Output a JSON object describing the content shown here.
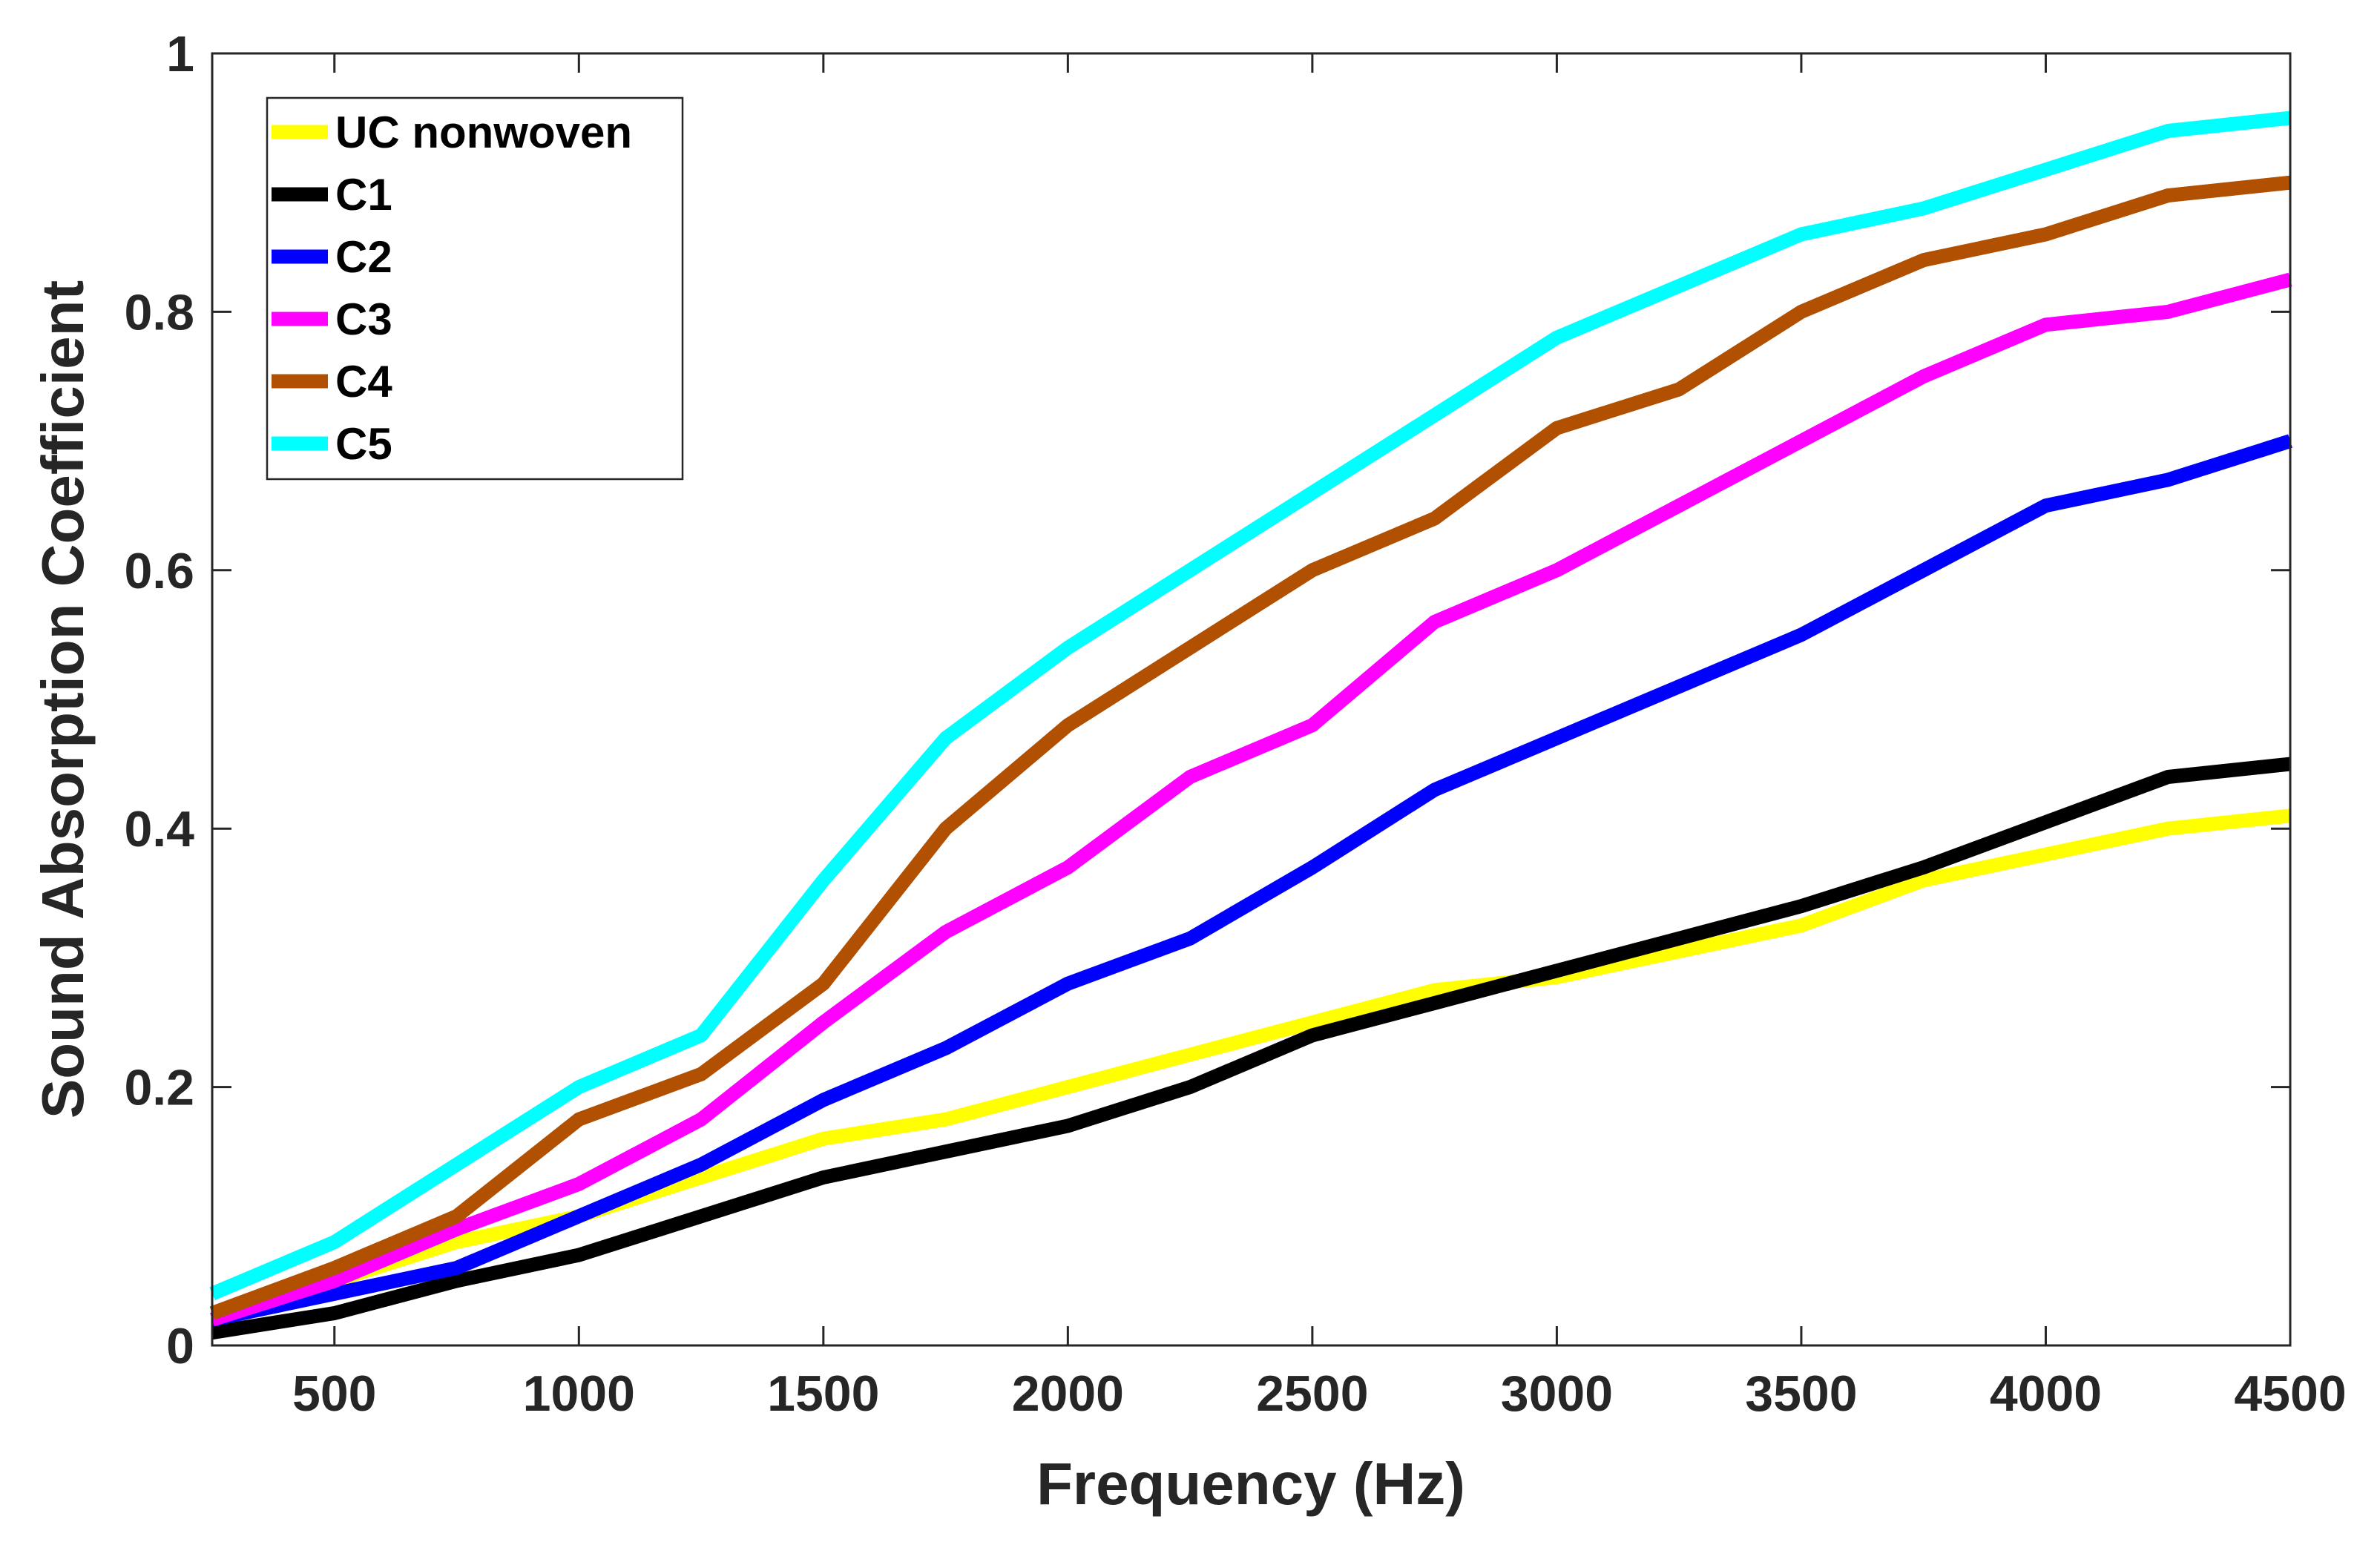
{
  "chart_data": {
    "type": "line",
    "title": "",
    "xlabel": "Frequency (Hz)",
    "ylabel": "Sound Absorption Coefficient",
    "xlim": [
      250,
      4500
    ],
    "ylim": [
      0,
      1
    ],
    "xticks": [
      500,
      1000,
      1500,
      2000,
      2500,
      3000,
      3500,
      4000,
      4500
    ],
    "xtick_labels": [
      "500",
      "1000",
      "1500",
      "2000",
      "2500",
      "3000",
      "3500",
      "4000",
      "4500"
    ],
    "yticks": [
      0,
      0.2,
      0.4,
      0.6,
      0.8,
      1
    ],
    "ytick_labels": [
      "0",
      "0.2",
      "0.4",
      "0.6",
      "0.8",
      "1"
    ],
    "grid": false,
    "legend_position": "top-left",
    "x": [
      250,
      500,
      750,
      1000,
      1250,
      1500,
      1750,
      2000,
      2250,
      2500,
      2750,
      3000,
      3250,
      3500,
      3750,
      4000,
      4250,
      4500
    ],
    "series": [
      {
        "name": "UC nonwoven",
        "color": "#ffff00",
        "values": [
          0.02,
          0.05,
          0.08,
          0.1,
          0.13,
          0.16,
          0.175,
          0.2,
          0.225,
          0.25,
          0.275,
          0.285,
          0.305,
          0.325,
          0.36,
          0.38,
          0.4,
          0.41
        ]
      },
      {
        "name": "C1",
        "color": "#000000",
        "values": [
          0.01,
          0.025,
          0.05,
          0.07,
          0.1,
          0.13,
          0.15,
          0.17,
          0.2,
          0.24,
          0.265,
          0.29,
          0.315,
          0.34,
          0.37,
          0.405,
          0.44,
          0.45
        ]
      },
      {
        "name": "C2",
        "color": "#0000ff",
        "values": [
          0.02,
          0.04,
          0.06,
          0.1,
          0.14,
          0.19,
          0.23,
          0.28,
          0.315,
          0.37,
          0.43,
          0.47,
          0.51,
          0.55,
          0.6,
          0.65,
          0.67,
          0.7
        ]
      },
      {
        "name": "C3",
        "color": "#ff00ff",
        "values": [
          0.02,
          0.05,
          0.09,
          0.125,
          0.175,
          0.25,
          0.32,
          0.37,
          0.44,
          0.48,
          0.56,
          0.6,
          0.65,
          0.7,
          0.75,
          0.79,
          0.8,
          0.825
        ]
      },
      {
        "name": "C4",
        "color": "#b05000",
        "values": [
          0.025,
          0.06,
          0.1,
          0.175,
          0.21,
          0.28,
          0.4,
          0.48,
          0.54,
          0.6,
          0.64,
          0.71,
          0.74,
          0.8,
          0.84,
          0.86,
          0.89,
          0.9
        ]
      },
      {
        "name": "C5",
        "color": "#00ffff",
        "values": [
          0.04,
          0.08,
          0.14,
          0.2,
          0.24,
          0.36,
          0.47,
          0.54,
          0.6,
          0.66,
          0.72,
          0.78,
          0.82,
          0.86,
          0.88,
          0.91,
          0.94,
          0.95
        ]
      }
    ]
  }
}
